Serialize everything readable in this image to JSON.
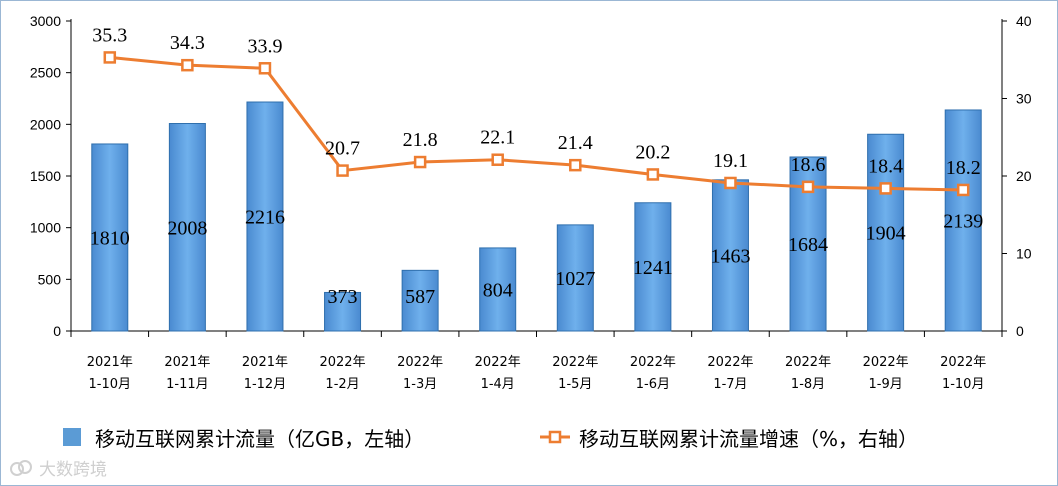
{
  "chart_data": {
    "type": "bar+line",
    "categories": [
      [
        "2021年",
        "1-10月"
      ],
      [
        "2021年",
        "1-11月"
      ],
      [
        "2021年",
        "1-12月"
      ],
      [
        "2022年",
        "1-2月"
      ],
      [
        "2022年",
        "1-3月"
      ],
      [
        "2022年",
        "1-4月"
      ],
      [
        "2022年",
        "1-5月"
      ],
      [
        "2022年",
        "1-6月"
      ],
      [
        "2022年",
        "1-7月"
      ],
      [
        "2022年",
        "1-8月"
      ],
      [
        "2022年",
        "1-9月"
      ],
      [
        "2022年",
        "1-10月"
      ]
    ],
    "series": [
      {
        "name": "移动互联网累计流量（亿GB，左轴）",
        "kind": "bar",
        "axis": "left",
        "values": [
          1810,
          2008,
          2216,
          373,
          587,
          804,
          1027,
          1241,
          1463,
          1684,
          1904,
          2139
        ],
        "color": "#5b9bd5"
      },
      {
        "name": "移动互联网累计流量增速（%，右轴）",
        "kind": "line",
        "axis": "right",
        "values": [
          35.3,
          34.3,
          33.9,
          20.7,
          21.8,
          22.1,
          21.4,
          20.2,
          19.1,
          18.6,
          18.4,
          18.2
        ],
        "color": "#ed7d31"
      }
    ],
    "y_left": {
      "range": [
        0,
        3000
      ],
      "ticks": [
        0,
        500,
        1000,
        1500,
        2000,
        2500,
        3000
      ]
    },
    "y_right": {
      "range": [
        0,
        40
      ],
      "ticks": [
        0,
        10,
        20,
        30,
        40
      ]
    },
    "grid": false,
    "legend_position": "bottom"
  },
  "watermark": "大数跨境"
}
